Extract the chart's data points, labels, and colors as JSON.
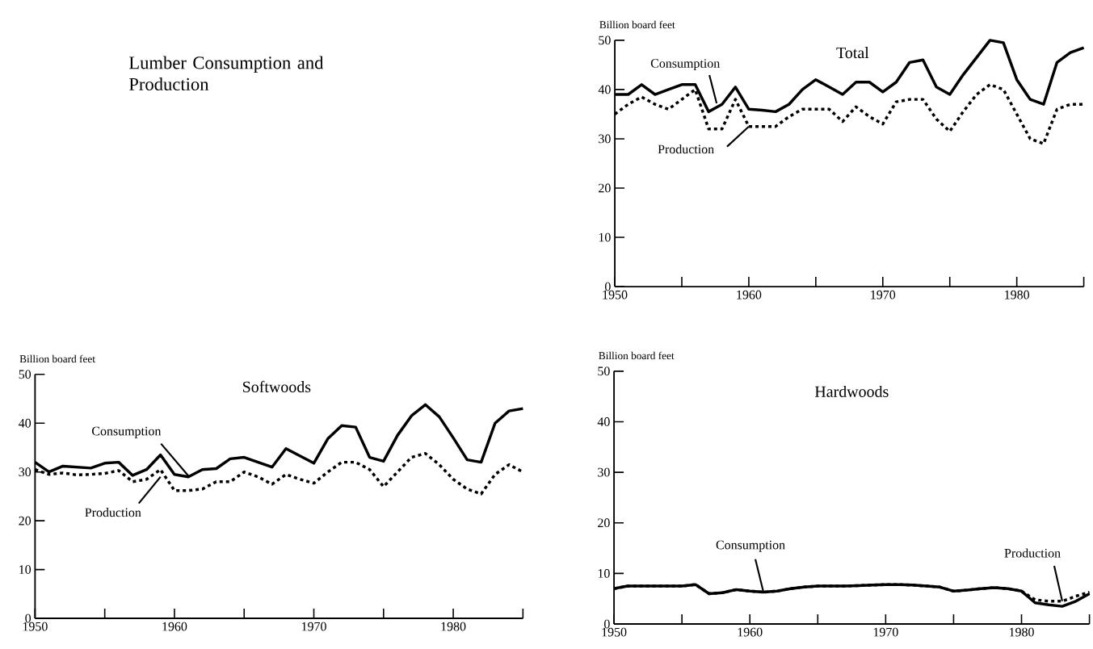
{
  "chart_data": [
    {
      "type": "other",
      "title": "Lumber Consumption and Production"
    },
    {
      "type": "line",
      "title": "Total",
      "ylabel": "Billion board feet",
      "x": [
        1950,
        1951,
        1952,
        1953,
        1954,
        1955,
        1956,
        1957,
        1958,
        1959,
        1960,
        1961,
        1962,
        1963,
        1964,
        1965,
        1966,
        1967,
        1968,
        1969,
        1970,
        1971,
        1972,
        1973,
        1974,
        1975,
        1976,
        1977,
        1978,
        1979,
        1980,
        1981,
        1982,
        1983,
        1984,
        1985
      ],
      "series": [
        {
          "color": "#000000",
          "line_style": "solid",
          "values": [
            39,
            39,
            41,
            39,
            40,
            41,
            41,
            35.5,
            37,
            40.5,
            36,
            35.8,
            35.5,
            37,
            40,
            42,
            40.5,
            39,
            41.5,
            41.5,
            39.5,
            41.5,
            45.5,
            46,
            40.5,
            39,
            43,
            46.5,
            50,
            49.5,
            42,
            38,
            37,
            45.5,
            47.5,
            48.5
          ]
        },
        {
          "color": "#000000",
          "line_style": "dotted",
          "values": [
            35,
            37,
            38.5,
            37,
            36,
            38,
            40,
            32,
            32,
            38,
            32.5,
            32.5,
            32.5,
            34.5,
            36,
            36,
            36,
            33.5,
            36.5,
            34.5,
            33,
            37.5,
            38,
            38,
            34,
            31.5,
            35.5,
            39,
            41,
            40,
            35,
            30,
            29,
            36,
            37,
            37
          ]
        }
      ],
      "xlim": [
        1950,
        1985
      ],
      "ylim": [
        0,
        50
      ],
      "xticks": [
        1950,
        {
          "value": 1955,
          "label": null
        },
        1960,
        {
          "value": 1965,
          "label": null
        },
        1970,
        {
          "value": 1975,
          "label": null
        },
        1980,
        {
          "value": 1985,
          "label": null
        }
      ],
      "yticks": [
        0,
        10,
        20,
        30,
        40,
        50
      ],
      "annotations": [
        {
          "text": "Consumption",
          "x": 1957.6,
          "y": 37.2
        },
        {
          "text": "Production",
          "x": 1960,
          "y": 32.5
        }
      ]
    },
    {
      "type": "line",
      "title": "Softwoods",
      "ylabel": "Billion board feet",
      "x": [
        1950,
        1951,
        1952,
        1953,
        1954,
        1955,
        1956,
        1957,
        1958,
        1959,
        1960,
        1961,
        1962,
        1963,
        1964,
        1965,
        1966,
        1967,
        1968,
        1969,
        1970,
        1971,
        1972,
        1973,
        1974,
        1975,
        1976,
        1977,
        1978,
        1979,
        1980,
        1981,
        1982,
        1983,
        1984,
        1985
      ],
      "series": [
        {
          "color": "#000000",
          "line_style": "solid",
          "values": [
            32,
            30,
            31.2,
            31,
            30.8,
            31.8,
            32,
            29.3,
            30.5,
            33.5,
            29.5,
            29,
            30.5,
            30.7,
            32.7,
            33,
            32,
            31,
            34.8,
            33.3,
            31.8,
            36.8,
            39.5,
            39.2,
            33,
            32.2,
            37.5,
            41.5,
            43.8,
            41.3,
            37,
            32.5,
            32,
            40,
            42.5,
            43
          ]
        },
        {
          "color": "#000000",
          "line_style": "dotted",
          "values": [
            30.5,
            29.5,
            29.8,
            29.4,
            29.5,
            29.7,
            30.3,
            28,
            28.5,
            30.5,
            26.2,
            26.2,
            26.5,
            28,
            28,
            30,
            29,
            27.5,
            29.5,
            28.5,
            27.7,
            30,
            32,
            32,
            30.5,
            27,
            30,
            33,
            33.8,
            31.5,
            28.5,
            26.5,
            25.5,
            29.5,
            31.5,
            30
          ]
        }
      ],
      "xlim": [
        1950,
        1985
      ],
      "ylim": [
        0,
        50
      ],
      "xticks": [
        1950,
        {
          "value": 1955,
          "label": null
        },
        1960,
        {
          "value": 1965,
          "label": null
        },
        1970,
        {
          "value": 1975,
          "label": null
        },
        1980,
        {
          "value": 1985,
          "label": null
        }
      ],
      "yticks": [
        0,
        10,
        20,
        30,
        40,
        50
      ],
      "annotations": [
        {
          "text": "Consumption",
          "x": 1961,
          "y": 29.2
        },
        {
          "text": "Production",
          "x": 1959,
          "y": 29
        }
      ]
    },
    {
      "type": "line",
      "title": "Hardwoods",
      "ylabel": "Billion board feet",
      "x": [
        1950,
        1951,
        1952,
        1953,
        1954,
        1955,
        1956,
        1957,
        1958,
        1959,
        1960,
        1961,
        1962,
        1963,
        1964,
        1965,
        1966,
        1967,
        1968,
        1969,
        1970,
        1971,
        1972,
        1973,
        1974,
        1975,
        1976,
        1977,
        1978,
        1979,
        1980,
        1981,
        1982,
        1983,
        1984,
        1985
      ],
      "series": [
        {
          "color": "#000000",
          "line_style": "solid",
          "values": [
            7,
            7.5,
            7.5,
            7.5,
            7.5,
            7.5,
            7.8,
            6,
            6.2,
            6.8,
            6.5,
            6.3,
            6.5,
            7,
            7.3,
            7.5,
            7.5,
            7.5,
            7.6,
            7.7,
            7.8,
            7.8,
            7.7,
            7.5,
            7.3,
            6.5,
            6.7,
            7,
            7.2,
            7,
            6.5,
            4.2,
            3.8,
            3.5,
            4.5,
            6
          ]
        },
        {
          "color": "#000000",
          "line_style": "dotted",
          "values": [
            7,
            7.5,
            7.5,
            7.5,
            7.5,
            7.5,
            7.8,
            6,
            6.2,
            6.8,
            6.5,
            6.3,
            6.5,
            7,
            7.3,
            7.5,
            7.5,
            7.5,
            7.6,
            7.7,
            7.8,
            7.8,
            7.7,
            7.5,
            7.3,
            6.5,
            6.7,
            7,
            7.2,
            7,
            6.5,
            4.8,
            4.5,
            4.5,
            5.5,
            6.3
          ]
        }
      ],
      "xlim": [
        1950,
        1985
      ],
      "ylim": [
        0,
        50
      ],
      "xticks": [
        1950,
        {
          "value": 1955,
          "label": null
        },
        1960,
        {
          "value": 1965,
          "label": null
        },
        1970,
        {
          "value": 1975,
          "label": null
        },
        1980,
        {
          "value": 1985,
          "label": null
        }
      ],
      "yticks": [
        0,
        10,
        20,
        30,
        40,
        50
      ],
      "annotations": [
        {
          "text": "Consumption",
          "x": 1961,
          "y": 6.3
        },
        {
          "text": "Production",
          "x": 1983,
          "y": 4.5
        }
      ]
    }
  ]
}
